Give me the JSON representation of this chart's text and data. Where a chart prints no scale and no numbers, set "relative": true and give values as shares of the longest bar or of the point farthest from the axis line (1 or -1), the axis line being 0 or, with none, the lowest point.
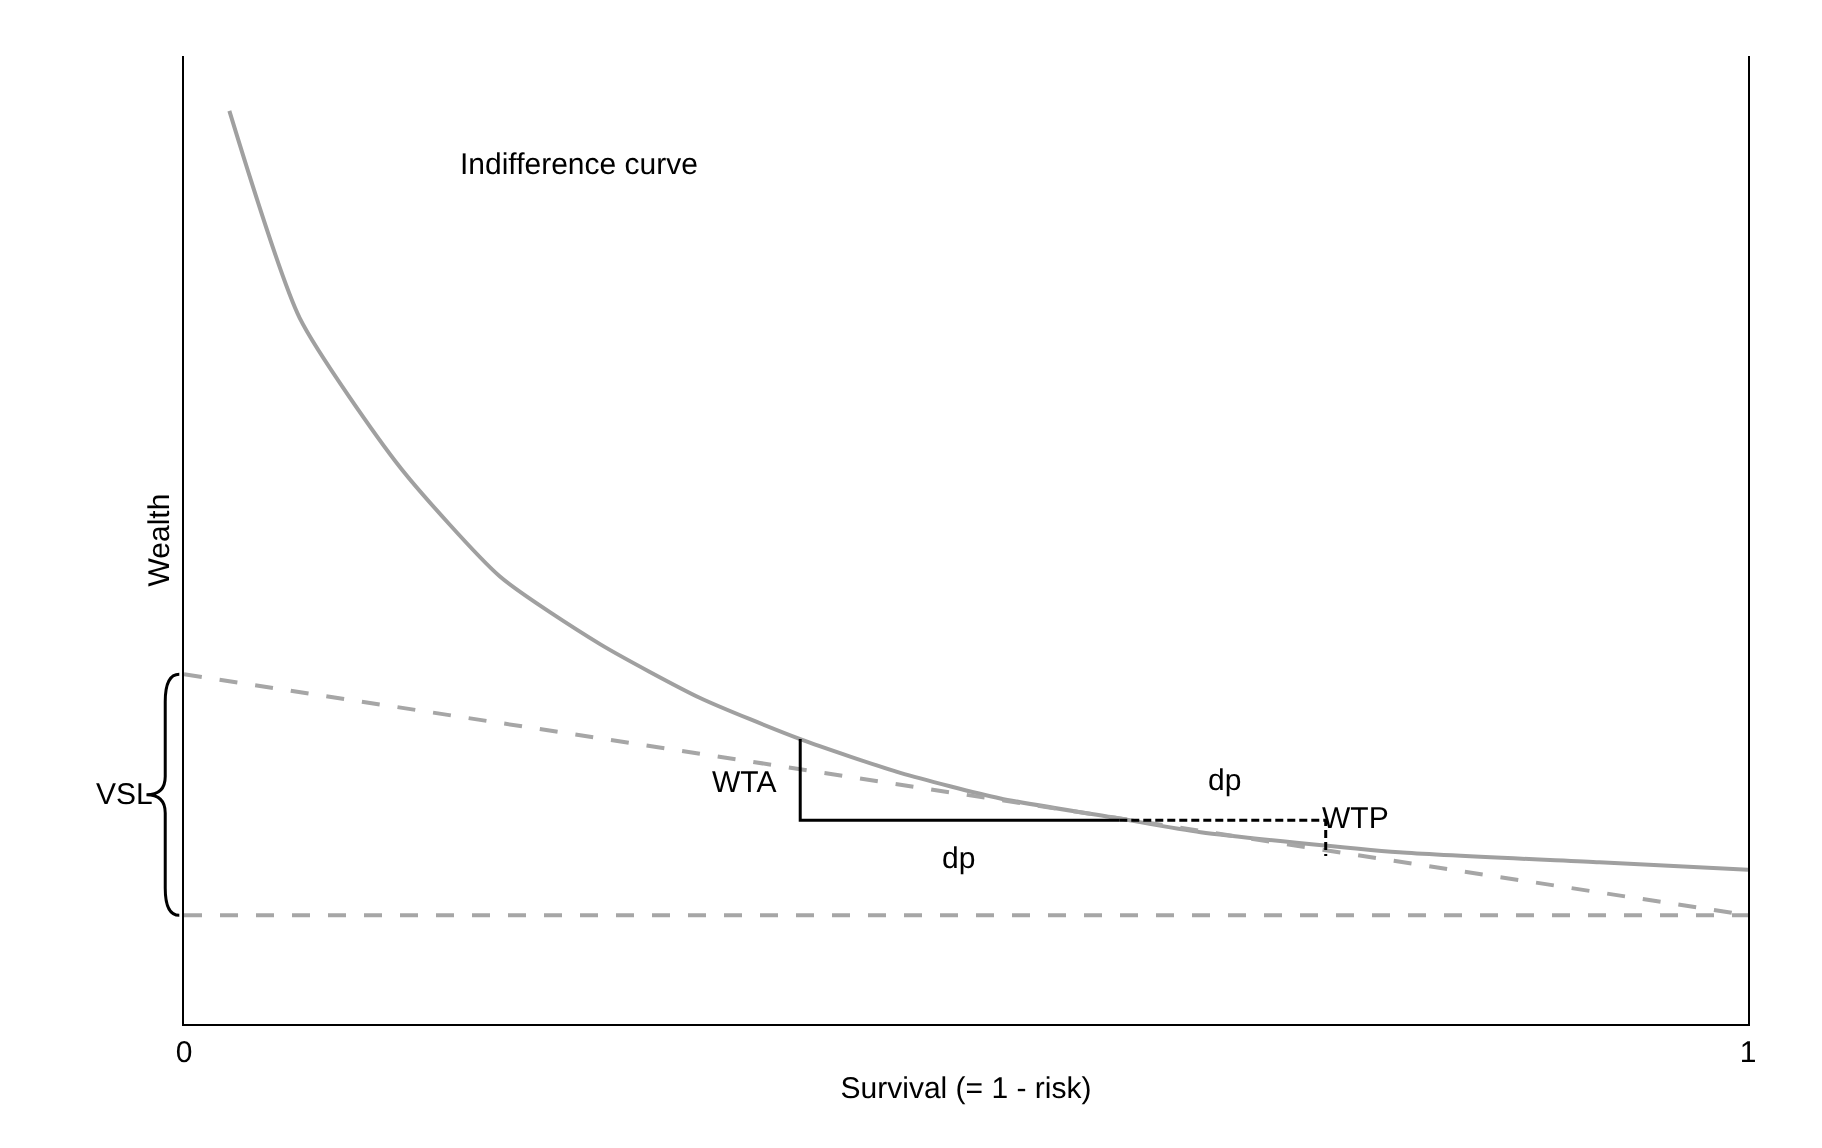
{
  "chart_data": {
    "type": "line",
    "relative": true,
    "xlabel": "Survival (= 1 - risk)",
    "ylabel": "Wealth",
    "xlim": [
      0,
      1
    ],
    "xticks": [
      0,
      1
    ],
    "marker": "none",
    "series": [
      {
        "color": "#a0a0a0",
        "line_style": "solid",
        "x": [
          0.029,
          0.074,
          0.138,
          0.202,
          0.266,
          0.33,
          0.394,
          0.458,
          0.522,
          0.598,
          0.65,
          0.777,
          0.905,
          1.0
        ],
        "values": [
          1.0,
          0.773,
          0.61,
          0.49,
          0.416,
          0.357,
          0.312,
          0.275,
          0.247,
          0.225,
          0.21,
          0.188,
          0.177,
          0.169
        ]
      },
      {
        "color": "#a6a6a6",
        "line_style": "dashed",
        "x": [
          0,
          1
        ],
        "values": [
          0.383,
          0.119
        ]
      },
      {
        "color": "#000000",
        "line_style": "solid",
        "x": [
          0.394,
          0.394,
          0.598
        ],
        "values": [
          0.312,
          0.223,
          0.223
        ]
      },
      {
        "color": "#000000",
        "line_style": "dashed",
        "x": [
          0.598,
          0.73,
          0.73
        ],
        "values": [
          0.223,
          0.223,
          0.184
        ]
      }
    ],
    "ref_lines": [
      {
        "axis": "y",
        "value": 0.119,
        "color": "#a6a6a6",
        "line_style": "dashed"
      }
    ],
    "annotations": [
      "Indifference curve",
      "WTA",
      "dp",
      "dp",
      "WTP",
      "VSL"
    ]
  }
}
